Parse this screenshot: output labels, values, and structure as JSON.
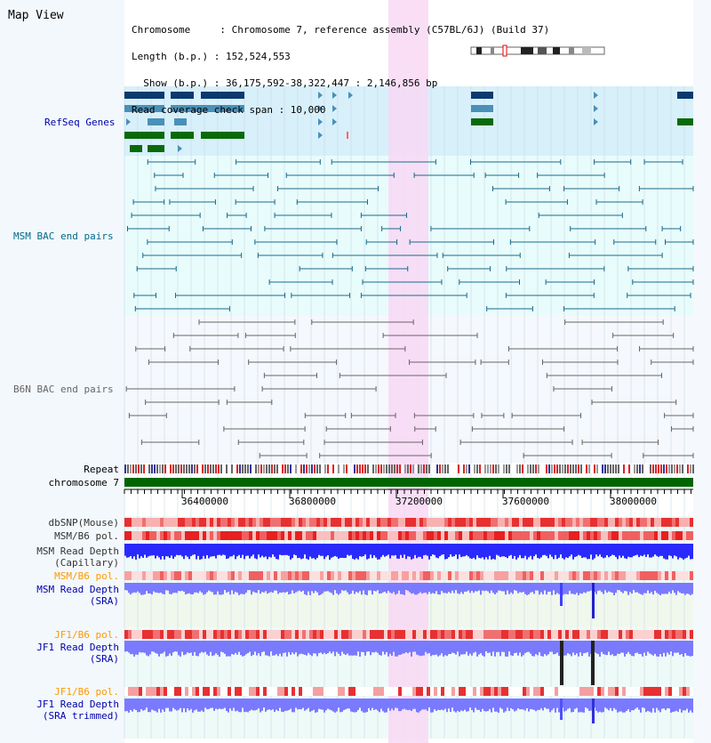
{
  "view": {
    "title": "Map View",
    "info_lines": [
      "Chromosome     : Chromosome 7, reference assembly (C57BL/6J) (Build 37)",
      "Length (b.p.) : 152,524,553",
      "  Show (b.p.) : 36,175,592-38,322,447 : 2,146,856 bp",
      "Read coverage check span : 10,000"
    ]
  },
  "tracks": {
    "refseq": "RefSeq Genes",
    "msm_bac": "MSM BAC end pairs",
    "b6n_bac": "B6N BAC end pairs",
    "repeat": "Repeat",
    "chromosome": "chromosome 7",
    "dbsnp": "dbSNP(Mouse)",
    "msm_b6_pol_1": "MSM/B6 pol.",
    "msm_depth_cap_1": "MSM Read Depth",
    "msm_depth_cap_2": "(Capillary)",
    "msm_b6_pol_2": "MSM/B6 pol.",
    "msm_depth_sra_1": "MSM Read Depth",
    "msm_depth_sra_2": "(SRA)",
    "jf1_b6_pol_1": "JF1/B6 pol.",
    "jf1_depth_sra_1": "JF1 Read Depth",
    "jf1_depth_sra_2": "(SRA)",
    "jf1_b6_pol_2": "JF1/B6 pol.",
    "jf1_depth_trim_1": "JF1 Read Depth",
    "jf1_depth_trim_2": "(SRA trimmed)"
  },
  "axis": {
    "ticks": [
      "36400000",
      "36800000",
      "37200000",
      "37600000",
      "38000000"
    ]
  },
  "colors": {
    "refseq_bg": "#d8f0fa",
    "bac_bg": "#e8fcfc",
    "b6n_bg": "#f5f8fc",
    "highlight": "#f8d8f4",
    "refseq_dark": "#0a3a6e",
    "refseq_mid": "#4a90b8",
    "refseq_green": "#0a6a0a",
    "msm_bac_line": "#1a6a8a",
    "b6n_line": "#666666",
    "chromosome": "#006400",
    "depth_cap": "#2a2aff",
    "depth_sra": "#7a7aff",
    "label_blue": "#0000aa",
    "label_orange": "#ff9900",
    "label_teal": "#006a8a"
  }
}
